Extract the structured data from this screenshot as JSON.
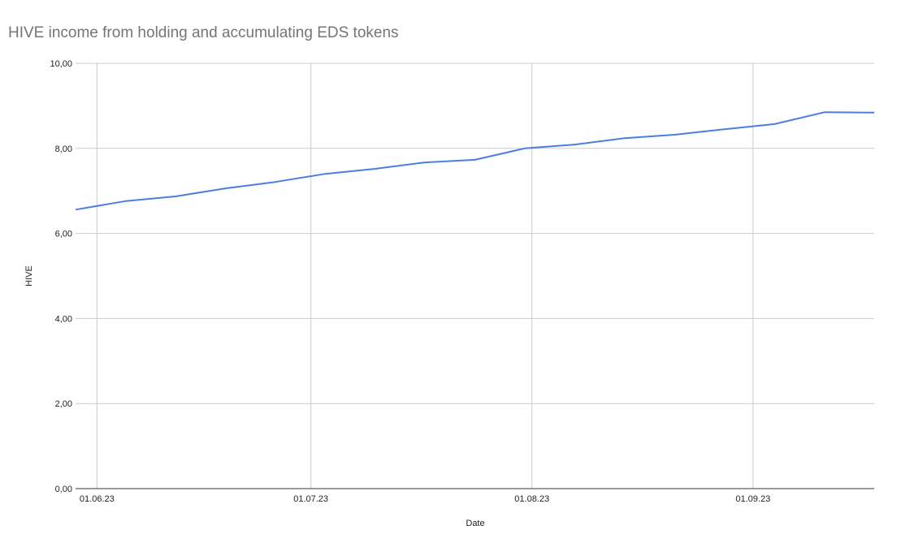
{
  "chart_data": {
    "type": "line",
    "title": "HIVE income from holding and accumulating EDS tokens",
    "xlabel": "Date",
    "ylabel": "HIVE",
    "ylim": [
      0,
      10
    ],
    "xlim": [
      "29.05.23",
      "18.09.23"
    ],
    "grid": true,
    "legend": "none",
    "line_color": "#4a7fdc",
    "y_ticks": [
      "0,00",
      "2,00",
      "4,00",
      "6,00",
      "8,00",
      "10,00"
    ],
    "x_ticks": [
      "01.06.23",
      "01.07.23",
      "01.08.23",
      "01.09.23"
    ],
    "x": [
      "29.05.23",
      "05.06.23",
      "12.06.23",
      "19.06.23",
      "26.06.23",
      "03.07.23",
      "10.07.23",
      "17.07.23",
      "24.07.23",
      "31.07.23",
      "07.08.23",
      "14.08.23",
      "21.08.23",
      "28.08.23",
      "04.09.23",
      "11.09.23",
      "18.09.23"
    ],
    "values": [
      6.56,
      6.76,
      6.87,
      7.06,
      7.21,
      7.4,
      7.52,
      7.67,
      7.73,
      8.0,
      8.09,
      8.24,
      8.32,
      8.45,
      8.57,
      8.85,
      8.84
    ]
  }
}
